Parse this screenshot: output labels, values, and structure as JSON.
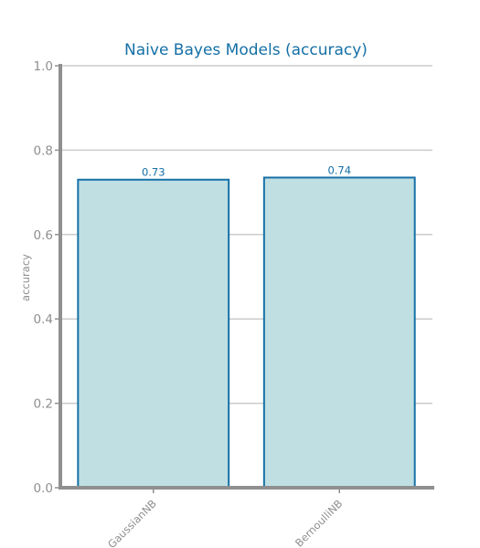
{
  "chart_data": {
    "type": "bar",
    "title": "Naive Bayes Models (accuracy)",
    "xlabel": "",
    "ylabel": "accuracy",
    "categories": [
      "GaussianNB",
      "BernoulliNB"
    ],
    "values": [
      0.73,
      0.735
    ],
    "data_labels": [
      "0.73",
      "0.74"
    ],
    "ylim": [
      0,
      1
    ],
    "yticks": [
      0.0,
      0.2,
      0.4,
      0.6,
      0.8,
      1.0
    ],
    "ytick_labels": [
      "0.0",
      "0.2",
      "0.4",
      "0.6",
      "0.8",
      "1.0"
    ],
    "grid": true,
    "colors": {
      "title": "#1570a6",
      "bar_fill": "#bfdfe3",
      "bar_edge": "#1570a6",
      "data_label": "#1570a6",
      "axis": "#8f8f8f",
      "grid": "#cccccc",
      "tick_text": "#8f8f8f"
    }
  }
}
